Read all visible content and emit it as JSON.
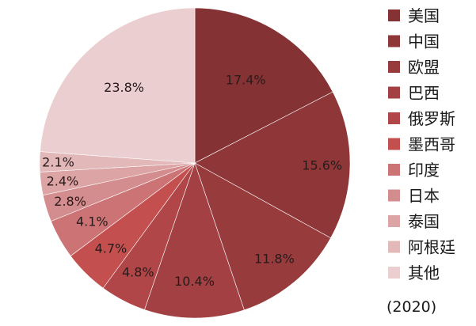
{
  "chart_data": {
    "type": "pie",
    "title": "",
    "year_note": "(2020)",
    "slices": [
      {
        "name": "美国",
        "value": 17.4,
        "label": "17.4%",
        "color": "#843234"
      },
      {
        "name": "中国",
        "value": 15.6,
        "label": "15.6%",
        "color": "#8e3638"
      },
      {
        "name": "欧盟",
        "value": 11.8,
        "label": "11.8%",
        "color": "#983b3d"
      },
      {
        "name": "巴西",
        "value": 10.4,
        "label": "10.4%",
        "color": "#a24043"
      },
      {
        "name": "俄罗斯",
        "value": 4.8,
        "label": "4.8%",
        "color": "#b04648"
      },
      {
        "name": "墨西哥",
        "value": 4.7,
        "label": "4.7%",
        "color": "#c3504f"
      },
      {
        "name": "印度",
        "value": 4.1,
        "label": "4.1%",
        "color": "#cc7475"
      },
      {
        "name": "日本",
        "value": 2.8,
        "label": "2.8%",
        "color": "#d48d8e"
      },
      {
        "name": "泰国",
        "value": 2.4,
        "label": "2.4%",
        "color": "#dca4a5"
      },
      {
        "name": "阿根廷",
        "value": 2.1,
        "label": "2.1%",
        "color": "#e2b8b9"
      },
      {
        "name": "其他",
        "value": 23.8,
        "label": "23.8%",
        "color": "#ebcfd0"
      }
    ],
    "start_angle_deg": 0,
    "direction": "clockwise",
    "legend_position": "right"
  }
}
